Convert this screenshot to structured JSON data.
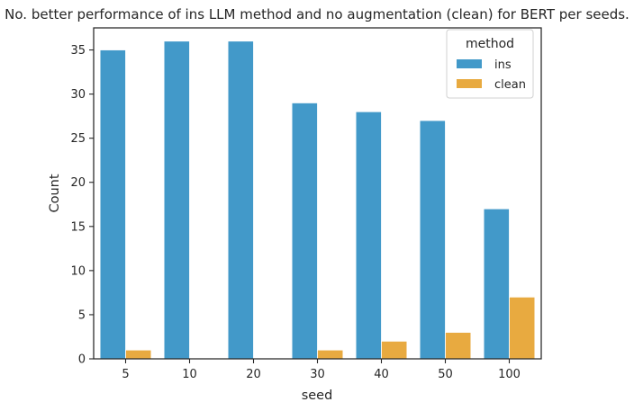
{
  "chart_data": {
    "type": "bar",
    "title": "No. better performance of ins LLM method and no augmentation (clean) for BERT per seeds.",
    "xlabel": "seed",
    "ylabel": "Count",
    "categories": [
      "5",
      "10",
      "20",
      "30",
      "40",
      "50",
      "100"
    ],
    "ylim": [
      0,
      37.5
    ],
    "yticks": [
      0,
      5,
      10,
      15,
      20,
      25,
      30,
      35
    ],
    "grid": false,
    "legend": {
      "title": "method",
      "placement": "top-right"
    },
    "series": [
      {
        "name": "ins",
        "color": "#4299c9",
        "values": [
          35,
          36,
          36,
          29,
          28,
          27,
          17
        ]
      },
      {
        "name": "clean",
        "color": "#e8aa40",
        "values": [
          1,
          0,
          0,
          1,
          2,
          3,
          7
        ]
      }
    ]
  }
}
